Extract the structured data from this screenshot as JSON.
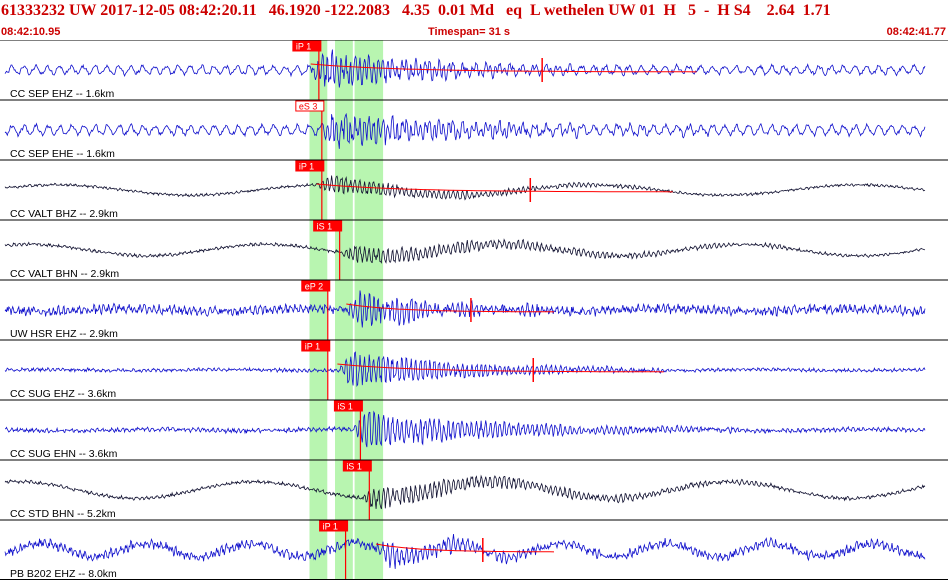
{
  "header": {
    "title": "61333232 UW 2017-12-05 08:42:20.11   46.1920 -122.2083   4.35  0.01 Md   eq  L wethelen UW 01  H   5  -  H S4    2.64  1.71",
    "start_time": "08:42:10.95",
    "timespan": "Timespan=  31 s",
    "end_time": "08:42:41.77"
  },
  "colors": {
    "trace_blue": "#1010cc",
    "trace_dark": "#101030",
    "pick_red": "#ff0000",
    "highlight_green": "#b8f5b0",
    "header_red": "#cc0000"
  },
  "chart_data": {
    "type": "line",
    "title": "61333232 UW 2017-12-05 08:42:20.11",
    "x_range": [
      "08:42:10.95",
      "08:42:41.77"
    ],
    "timespan_s": 31,
    "series": [
      {
        "name": "CC SEP EHZ -- 1.6km",
        "picks": [
          {
            "label": "iP 1",
            "t": 9.7
          }
        ],
        "color": "blue",
        "amp": 0.14,
        "noise": 0.09,
        "period": 0.4,
        "onset": 10.3,
        "burst": 0.75,
        "decay": 4,
        "dur": 13
      },
      {
        "name": "CC SEP EHE -- 1.6km",
        "picks": [
          {
            "label": "eS 3",
            "t": 9.8
          }
        ],
        "color": "blue",
        "amp": 0.16,
        "noise": 0.1,
        "period": 0.4,
        "onset": 10.6,
        "burst": 0.6,
        "decay": 5,
        "dur": 14
      },
      {
        "name": "CC VALT BHZ -- 2.9km",
        "picks": [
          {
            "label": "iP 1",
            "t": 9.8
          }
        ],
        "color": "dark",
        "amp": 0.2,
        "noise": 0.06,
        "period": 9,
        "onset": 10.5,
        "burst": 0.35,
        "decay": 5,
        "dur": 12
      },
      {
        "name": "CC VALT BHN -- 2.9km",
        "picks": [
          {
            "label": "iS 1",
            "t": 10.4
          }
        ],
        "color": "dark",
        "amp": 0.22,
        "noise": 0.07,
        "period": 8,
        "onset": 11.3,
        "burst": 0.35,
        "decay": 7,
        "dur": 16
      },
      {
        "name": "UW HSR EHZ -- 2.9km",
        "picks": [
          {
            "label": "eP 2",
            "t": 10.0
          }
        ],
        "color": "blue",
        "amp": 0.05,
        "noise": 0.22,
        "period": 6,
        "onset": 11.5,
        "burst": 0.8,
        "decay": 2.5,
        "dur": 7
      },
      {
        "name": "CC SUG EHZ -- 3.6km",
        "picks": [
          {
            "label": "iP 1",
            "t": 10.0
          }
        ],
        "color": "blue",
        "amp": 0.02,
        "noise": 0.08,
        "period": 6,
        "onset": 11.2,
        "burst": 0.75,
        "decay": 4,
        "dur": 11
      },
      {
        "name": "CC SUG EHN -- 3.6km",
        "picks": [
          {
            "label": "iS 1",
            "t": 11.1
          }
        ],
        "color": "blue",
        "amp": 0.03,
        "noise": 0.1,
        "period": 6,
        "onset": 11.7,
        "burst": 0.7,
        "decay": 5,
        "dur": 13
      },
      {
        "name": "CC STD BHN -- 5.2km",
        "picks": [
          {
            "label": "iS 1",
            "t": 11.4
          }
        ],
        "color": "dark",
        "amp": 0.32,
        "noise": 0.08,
        "period": 8,
        "onset": 12.0,
        "burst": 0.45,
        "decay": 6,
        "dur": 14
      },
      {
        "name": "PB B202 EHZ -- 8.0km",
        "picks": [
          {
            "label": "iP 1",
            "t": 10.6
          }
        ],
        "color": "blue",
        "amp": 0.25,
        "noise": 0.22,
        "period": 3.5,
        "onset": 12.5,
        "burst": 0.45,
        "decay": 3,
        "dur": 6
      }
    ],
    "green_bands": [
      {
        "t0": 10.26,
        "t1": 10.86
      },
      {
        "t0": 11.12,
        "t1": 11.72
      },
      {
        "t0": 11.78,
        "t1": 12.38
      },
      {
        "t0": 12.14,
        "t1": 12.74
      }
    ]
  }
}
